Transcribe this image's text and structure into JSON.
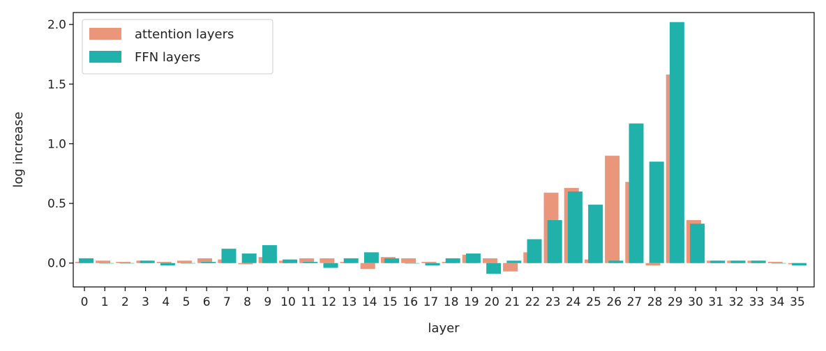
{
  "chart_data": {
    "type": "bar",
    "xlabel": "layer",
    "ylabel": "log increase",
    "ylim": [
      -0.2,
      2.1
    ],
    "yticks": [
      "0.0",
      "0.5",
      "1.0",
      "1.5",
      "2.0"
    ],
    "legend_position": "top-left",
    "categories": [
      "0",
      "1",
      "2",
      "3",
      "4",
      "5",
      "6",
      "7",
      "8",
      "9",
      "10",
      "11",
      "12",
      "13",
      "14",
      "15",
      "16",
      "17",
      "18",
      "19",
      "20",
      "21",
      "22",
      "23",
      "24",
      "25",
      "26",
      "27",
      "28",
      "29",
      "30",
      "31",
      "32",
      "33",
      "34",
      "35"
    ],
    "series": [
      {
        "name": "attention layers",
        "color": "#E9967A",
        "values": [
          0.01,
          0.02,
          0.01,
          0.02,
          0.01,
          0.02,
          0.04,
          0.03,
          -0.01,
          0.05,
          0.02,
          0.04,
          0.04,
          0.01,
          -0.05,
          0.05,
          0.04,
          0.01,
          0.01,
          0.07,
          0.04,
          -0.07,
          0.09,
          0.59,
          0.63,
          0.03,
          0.9,
          0.68,
          -0.02,
          1.58,
          0.36,
          0.02,
          0.02,
          0.02,
          0.01,
          -0.01
        ]
      },
      {
        "name": "FFN layers",
        "color": "#20B2AA",
        "values": [
          0.04,
          0.0,
          0.0,
          0.02,
          -0.02,
          0.0,
          0.01,
          0.12,
          0.08,
          0.15,
          0.03,
          0.01,
          -0.04,
          0.04,
          0.09,
          0.04,
          0.0,
          -0.02,
          0.04,
          0.08,
          -0.09,
          0.02,
          0.2,
          0.36,
          0.6,
          0.49,
          0.02,
          1.17,
          0.85,
          2.02,
          0.33,
          0.02,
          0.02,
          0.02,
          0.0,
          -0.02
        ]
      }
    ]
  }
}
